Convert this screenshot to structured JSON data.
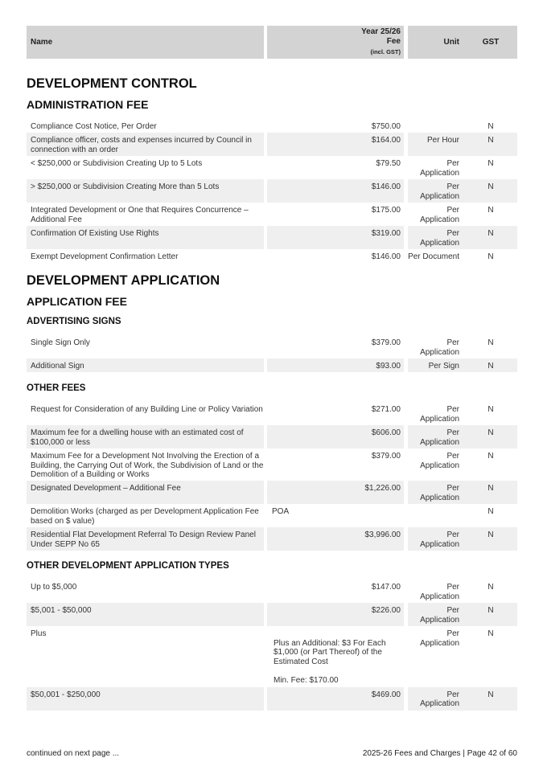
{
  "header": {
    "name": "Name",
    "fee_line1": "Year 25/26",
    "fee_line2": "Fee",
    "fee_line3": "(incl. GST)",
    "unit": "Unit",
    "gst": "GST"
  },
  "blocks": [
    {
      "type": "h1",
      "text": "DEVELOPMENT CONTROL",
      "mt": 21
    },
    {
      "type": "h2",
      "text": "ADMINISTRATION FEE",
      "mt": 7
    },
    {
      "type": "rows",
      "mt": 9,
      "rows": [
        {
          "name": "Compliance Cost Notice, Per Order",
          "fee": "$750.00",
          "unit": "",
          "gst": "N"
        },
        {
          "name": "Compliance officer, costs and expenses incurred by Council in connection with an order",
          "fee": "$164.00",
          "unit": "Per Hour",
          "gst": "N"
        },
        {
          "name": "< $250,000 or Subdivision Creating Up to 5 Lots",
          "fee": "$79.50",
          "unit": "Per Application",
          "gst": "N"
        },
        {
          "name": "> $250,000 or Subdivision Creating More than 5 Lots",
          "fee": "$146.00",
          "unit": "Per Application",
          "gst": "N"
        },
        {
          "name": "Integrated Development or One that Requires Concurrence – Additional Fee",
          "fee": "$175.00",
          "unit": "Per Application",
          "gst": "N"
        },
        {
          "name": "Confirmation Of Existing Use Rights",
          "fee": "$319.00",
          "unit": "Per Application",
          "gst": "N"
        },
        {
          "name": "Exempt Development Confirmation Letter",
          "fee": "$146.00",
          "unit": "Per Document",
          "gst": "N"
        }
      ]
    },
    {
      "type": "h1",
      "text": "DEVELOPMENT APPLICATION",
      "mt": 12
    },
    {
      "type": "h2",
      "text": "APPLICATION FEE",
      "mt": 7
    },
    {
      "type": "h3",
      "text": "ADVERTISING SIGNS",
      "mt": 8
    },
    {
      "type": "rows",
      "mt": 9,
      "rows": [
        {
          "name": "Single Sign Only",
          "fee": "$379.00",
          "unit": "Per Application",
          "gst": "N"
        },
        {
          "name": "Additional Sign",
          "fee": "$93.00",
          "unit": "Per Sign",
          "gst": "N"
        }
      ]
    },
    {
      "type": "h3",
      "text": "OTHER FEES",
      "mt": 12
    },
    {
      "type": "rows",
      "mt": 9,
      "rows": [
        {
          "name": "Request for Consideration of any Building Line or Policy Variation",
          "fee": "$271.00",
          "unit": "Per Application",
          "gst": "N"
        },
        {
          "name": "Maximum fee for a dwelling house with an estimated cost of $100,000 or less",
          "fee": "$606.00",
          "unit": "Per Application",
          "gst": "N"
        },
        {
          "name": "Maximum Fee for a Development Not Involving the Erection of a Building, the Carrying Out of Work, the Subdivision of Land or the Demolition of a Building or Works",
          "fee": "$379.00",
          "unit": "Per Application",
          "gst": "N"
        },
        {
          "name": "Designated Development – Additional Fee",
          "fee": "$1,226.00",
          "unit": "Per Application",
          "gst": "N"
        },
        {
          "name": "Demolition Works (charged as per Development Application Fee based on $ value)",
          "fee": "POA",
          "fee_left": true,
          "unit": "",
          "gst": "N"
        },
        {
          "name": "Residential Flat Development Referral To Design Review Panel Under SEPP No 65",
          "fee": "$3,996.00",
          "unit": "Per Application",
          "gst": "N"
        }
      ]
    },
    {
      "type": "h3",
      "text": "OTHER DEVELOPMENT APPLICATION TYPES",
      "mt": 11
    },
    {
      "type": "rows",
      "mt": 9,
      "rows": [
        {
          "name": "Up to $5,000",
          "fee": "$147.00",
          "unit": "Per Application",
          "gst": "N"
        },
        {
          "name": "$5,001 - $50,000",
          "fee": "$226.00",
          "unit": "Per Application",
          "gst": "N"
        },
        {
          "name": "Plus",
          "fee": "",
          "note": "Plus an Additional: $3 For Each $1,000 (or Part Thereof) of the Estimated Cost",
          "min_fee": "Min. Fee: $170.00",
          "unit": "Per Application",
          "gst": "N"
        },
        {
          "name": "$50,001 - $250,000",
          "fee": "$469.00",
          "unit": "Per Application",
          "gst": "N"
        }
      ]
    }
  ],
  "footer": {
    "left": "continued on next page ...",
    "right": "2025-26 Fees and Charges | Page 42 of 60"
  },
  "colors": {
    "header_bg": "#d3d3d3",
    "alt_row_bg": "#efefef"
  }
}
